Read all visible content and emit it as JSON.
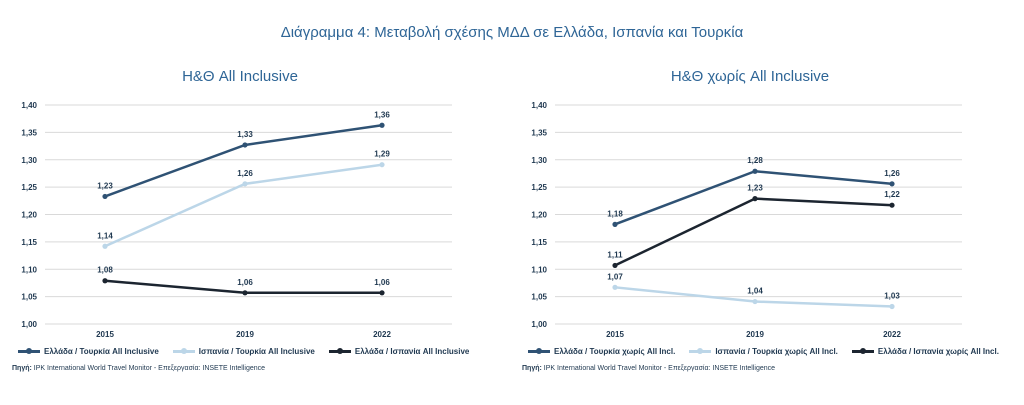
{
  "title": "Διάγραμμα 4: Μεταβολή σχέσης ΜΔΔ σε Ελλάδα, Ισπανία και Τουρκία",
  "source_label": "Πηγή:",
  "source_text": "IPK International World Travel Monitor - Επεξεργασία: INSETE Intelligence",
  "chart_data": [
    {
      "type": "line",
      "title": "Η&Θ All Inclusive",
      "categories": [
        "2015",
        "2019",
        "2022"
      ],
      "ylim": [
        1.0,
        1.4
      ],
      "yticks": [
        "1,00",
        "1,05",
        "1,10",
        "1,15",
        "1,20",
        "1,25",
        "1,30",
        "1,35",
        "1,40"
      ],
      "grid": true,
      "legend": "bottom",
      "series": [
        {
          "name": "Ελλάδα / Τουρκία All Inclusive",
          "values": [
            1.23,
            1.33,
            1.36
          ],
          "point_values": [
            1.233,
            1.327,
            1.363
          ],
          "labels": [
            "1,23",
            "1,33",
            "1,36"
          ],
          "color": "#2f5274"
        },
        {
          "name": "Ισπανία / Τουρκία All Inclusive",
          "values": [
            1.14,
            1.26,
            1.29
          ],
          "point_values": [
            1.142,
            1.256,
            1.291
          ],
          "labels": [
            "1,14",
            "1,26",
            "1,29"
          ],
          "color": "#bcd6e8"
        },
        {
          "name": "Ελλάδα / Ισπανία All Inclusive",
          "values": [
            1.08,
            1.06,
            1.06
          ],
          "point_values": [
            1.079,
            1.057,
            1.057
          ],
          "labels": [
            "1,08",
            "1,06",
            "1,06"
          ],
          "color": "#1c2530"
        }
      ]
    },
    {
      "type": "line",
      "title": "Η&Θ χωρίς All Inclusive",
      "categories": [
        "2015",
        "2019",
        "2022"
      ],
      "ylim": [
        1.0,
        1.4
      ],
      "yticks": [
        "1,00",
        "1,05",
        "1,10",
        "1,15",
        "1,20",
        "1,25",
        "1,30",
        "1,35",
        "1,40"
      ],
      "grid": true,
      "legend": "bottom",
      "series": [
        {
          "name": "Ελλάδα / Τουρκία χωρίς All Incl.",
          "values": [
            1.18,
            1.28,
            1.26
          ],
          "point_values": [
            1.182,
            1.279,
            1.256
          ],
          "labels": [
            "1,18",
            "1,28",
            "1,26"
          ],
          "color": "#2f5274"
        },
        {
          "name": "Ισπανία / Τουρκία χωρίς All Incl.",
          "values": [
            1.07,
            1.04,
            1.03
          ],
          "point_values": [
            1.067,
            1.041,
            1.032
          ],
          "labels": [
            "1,07",
            "1,04",
            "1,03"
          ],
          "color": "#bcd6e8"
        },
        {
          "name": "Ελλάδα / Ισπανία χωρίς All Incl.",
          "values": [
            1.11,
            1.23,
            1.22
          ],
          "point_values": [
            1.107,
            1.229,
            1.217
          ],
          "labels": [
            "1,11",
            "1,23",
            "1,22"
          ],
          "color": "#1c2530"
        }
      ]
    }
  ]
}
